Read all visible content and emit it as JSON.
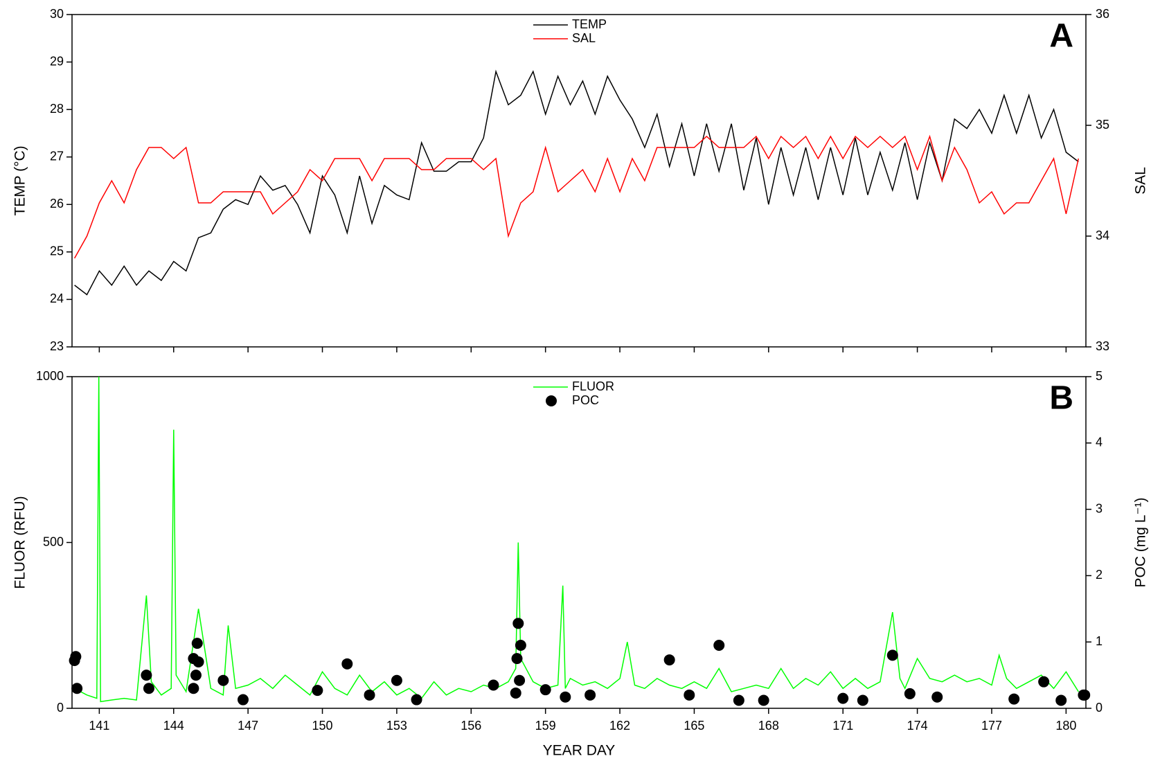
{
  "chart_data": [
    {
      "type": "line",
      "ylabel": "TEMP (°C)",
      "y2label": "SAL",
      "panel_label": "A",
      "legend": "top-center",
      "xlim": [
        139.9,
        180.8
      ],
      "xticks": [
        141,
        144,
        147,
        150,
        153,
        156,
        159,
        162,
        165,
        168,
        171,
        174,
        177,
        180
      ],
      "xtick_labels": false,
      "ylim": [
        23,
        30
      ],
      "yticks": [
        23,
        24,
        25,
        26,
        27,
        28,
        29,
        30
      ],
      "y2lim": [
        33,
        36
      ],
      "y2ticks": [
        33,
        34,
        35,
        36
      ],
      "x": [
        140,
        140.5,
        141,
        141.5,
        142,
        142.5,
        143,
        143.5,
        144,
        144.5,
        145,
        145.5,
        146,
        146.5,
        147,
        147.5,
        148,
        148.5,
        149,
        149.5,
        150,
        150.5,
        151,
        151.5,
        152,
        152.5,
        153,
        153.5,
        154,
        154.5,
        155,
        155.5,
        156,
        156.5,
        157,
        157.5,
        158,
        158.5,
        159,
        159.5,
        160,
        160.5,
        161,
        161.5,
        162,
        162.5,
        163,
        163.5,
        164,
        164.5,
        165,
        165.5,
        166,
        166.5,
        167,
        167.5,
        168,
        168.5,
        169,
        169.5,
        170,
        170.5,
        171,
        171.5,
        172,
        172.5,
        173,
        173.5,
        174,
        174.5,
        175,
        175.5,
        176,
        176.5,
        177,
        177.5,
        178,
        178.5,
        179,
        179.5,
        180,
        180.5
      ],
      "series": [
        {
          "name": "TEMP",
          "color": "#000000",
          "values": [
            24.3,
            24.1,
            24.6,
            24.3,
            24.7,
            24.3,
            24.6,
            24.4,
            24.8,
            24.6,
            25.3,
            25.4,
            25.9,
            26.1,
            26.0,
            26.6,
            26.3,
            26.4,
            26.0,
            25.4,
            26.6,
            26.2,
            25.4,
            26.6,
            25.6,
            26.4,
            26.2,
            26.1,
            27.3,
            26.7,
            26.7,
            26.9,
            26.9,
            27.4,
            28.8,
            28.1,
            28.3,
            28.8,
            27.9,
            28.7,
            28.1,
            28.6,
            27.9,
            28.7,
            28.2,
            27.8,
            27.2,
            27.9,
            26.8,
            27.7,
            26.6,
            27.7,
            26.7,
            27.7,
            26.3,
            27.4,
            26.0,
            27.2,
            26.2,
            27.2,
            26.1,
            27.2,
            26.2,
            27.4,
            26.2,
            27.1,
            26.3,
            27.3,
            26.1,
            27.3,
            26.5,
            27.8,
            27.6,
            28.0,
            27.5,
            28.3,
            27.5,
            28.3,
            27.4,
            28.0,
            27.1,
            26.9
          ]
        },
        {
          "name": "SAL",
          "color": "#ff0000",
          "axis": "y2",
          "values": [
            33.8,
            34.0,
            34.3,
            34.5,
            34.3,
            34.6,
            34.8,
            34.8,
            34.7,
            34.8,
            34.3,
            34.3,
            34.4,
            34.4,
            34.4,
            34.4,
            34.2,
            34.3,
            34.4,
            34.6,
            34.5,
            34.7,
            34.7,
            34.7,
            34.5,
            34.7,
            34.7,
            34.7,
            34.6,
            34.6,
            34.7,
            34.7,
            34.7,
            34.6,
            34.7,
            34.0,
            34.3,
            34.4,
            34.8,
            34.4,
            34.5,
            34.6,
            34.4,
            34.7,
            34.4,
            34.7,
            34.5,
            34.8,
            34.8,
            34.8,
            34.8,
            34.9,
            34.8,
            34.8,
            34.8,
            34.9,
            34.7,
            34.9,
            34.8,
            34.9,
            34.7,
            34.9,
            34.7,
            34.9,
            34.8,
            34.9,
            34.8,
            34.9,
            34.6,
            34.9,
            34.5,
            34.8,
            34.6,
            34.3,
            34.4,
            34.2,
            34.3,
            34.3,
            34.5,
            34.7,
            34.2,
            34.7
          ]
        }
      ]
    },
    {
      "type": "line",
      "xlabel": "YEAR DAY",
      "ylabel": "FLUOR (RFU)",
      "y2label": "POC (mg L⁻¹)",
      "panel_label": "B",
      "legend": "top-center",
      "xlim": [
        139.9,
        180.8
      ],
      "xticks": [
        141,
        144,
        147,
        150,
        153,
        156,
        159,
        162,
        165,
        168,
        171,
        174,
        177,
        180
      ],
      "ylim": [
        0,
        1000
      ],
      "yticks": [
        0,
        500,
        1000
      ],
      "y2lim": [
        0,
        5
      ],
      "y2ticks": [
        0,
        1,
        2,
        3,
        4,
        5
      ],
      "series": [
        {
          "name": "FLUOR",
          "color": "#00ff00",
          "x": [
            140,
            140.5,
            140.9,
            140.98,
            141.05,
            141.5,
            142,
            142.5,
            142.9,
            143.1,
            143.5,
            143.9,
            144.0,
            144.1,
            144.5,
            145.0,
            145.5,
            146,
            146.2,
            146.5,
            147,
            147.5,
            148,
            148.5,
            149,
            149.5,
            150,
            150.5,
            151,
            151.5,
            152,
            152.5,
            153,
            153.5,
            154,
            154.5,
            155,
            155.5,
            156,
            156.5,
            157,
            157.5,
            157.8,
            157.9,
            158.0,
            158.5,
            159,
            159.5,
            159.7,
            159.8,
            160,
            160.5,
            161,
            161.5,
            162,
            162.3,
            162.6,
            163,
            163.5,
            164,
            164.5,
            165,
            165.5,
            166,
            166.5,
            167,
            167.5,
            168,
            168.5,
            169,
            169.5,
            170,
            170.5,
            171,
            171.5,
            172,
            172.5,
            173.0,
            173.3,
            173.5,
            174,
            174.5,
            175,
            175.5,
            176,
            176.5,
            177,
            177.3,
            177.6,
            178,
            178.5,
            179,
            179.5,
            180,
            180.5
          ],
          "values": [
            60,
            40,
            30,
            1000,
            20,
            25,
            30,
            25,
            340,
            80,
            40,
            60,
            840,
            100,
            50,
            300,
            60,
            40,
            250,
            60,
            70,
            90,
            60,
            100,
            70,
            40,
            110,
            60,
            40,
            100,
            50,
            80,
            40,
            60,
            30,
            80,
            40,
            60,
            50,
            70,
            60,
            80,
            120,
            500,
            150,
            80,
            60,
            70,
            370,
            60,
            90,
            70,
            80,
            60,
            90,
            200,
            70,
            60,
            90,
            70,
            60,
            80,
            60,
            120,
            50,
            60,
            70,
            60,
            120,
            60,
            90,
            70,
            110,
            60,
            90,
            60,
            80,
            290,
            90,
            60,
            150,
            90,
            80,
            100,
            80,
            90,
            70,
            160,
            90,
            60,
            80,
            100,
            60,
            110,
            50
          ]
        },
        {
          "name": "POC",
          "color": "#000000",
          "axis": "y2",
          "marker": "circle",
          "x": [
            140.0,
            140.05,
            140.1,
            142.9,
            143.0,
            144.8,
            144.8,
            144.9,
            144.95,
            145.0,
            146.0,
            146.8,
            149.8,
            151.0,
            151.9,
            153.0,
            153.8,
            156.9,
            157.8,
            157.85,
            157.9,
            157.95,
            158.0,
            159.0,
            159.8,
            160.8,
            164.0,
            164.8,
            166.0,
            166.8,
            167.8,
            171.0,
            171.8,
            173.0,
            173.7,
            174.8,
            177.9,
            179.1,
            179.8,
            180.7,
            180.75
          ],
          "values": [
            0.72,
            0.78,
            0.3,
            0.5,
            0.3,
            0.3,
            0.75,
            0.5,
            0.98,
            0.7,
            0.42,
            0.13,
            0.27,
            0.67,
            0.2,
            0.42,
            0.13,
            0.35,
            0.23,
            0.75,
            1.28,
            0.42,
            0.95,
            0.28,
            0.17,
            0.2,
            0.73,
            0.2,
            0.95,
            0.12,
            0.12,
            0.15,
            0.12,
            0.8,
            0.22,
            0.17,
            0.14,
            0.4,
            0.12,
            0.2,
            0.2
          ]
        }
      ]
    }
  ]
}
